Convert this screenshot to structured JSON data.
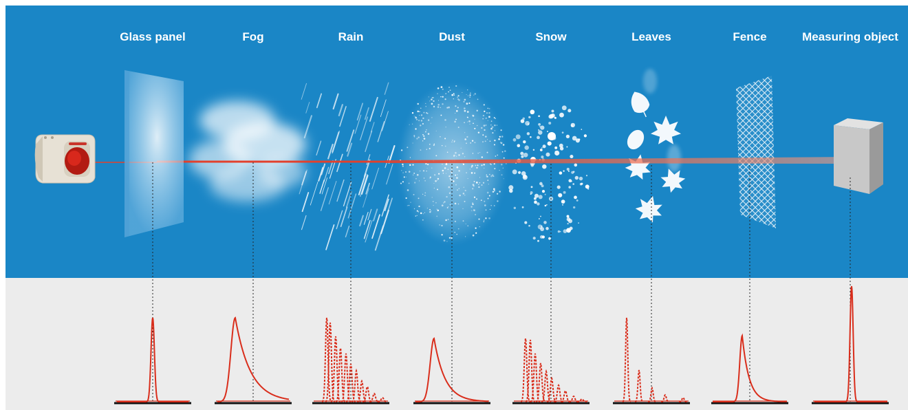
{
  "labels": [
    {
      "id": "glass",
      "text": "Glass panel"
    },
    {
      "id": "fog",
      "text": "Fog"
    },
    {
      "id": "rain",
      "text": "Rain"
    },
    {
      "id": "dust",
      "text": "Dust"
    },
    {
      "id": "snow",
      "text": "Snow"
    },
    {
      "id": "leaves",
      "text": "Leaves"
    },
    {
      "id": "fence",
      "text": "Fence"
    },
    {
      "id": "object",
      "text": "Measuring object"
    }
  ],
  "colors": {
    "sky": "#1a86c6",
    "panel_bg": "#ececec",
    "laser": "#e2402c",
    "signal": "#d92d1b",
    "baseline": "#111111"
  },
  "signal_types": {
    "glass": "narrow-peak",
    "fog": "broad-asymmetric",
    "rain": "scattered-dashed",
    "dust": "asymmetric",
    "snow": "scattered-dashed",
    "leaves": "sparse-spikes",
    "fence": "asymmetric",
    "object": "sharp-peak"
  }
}
